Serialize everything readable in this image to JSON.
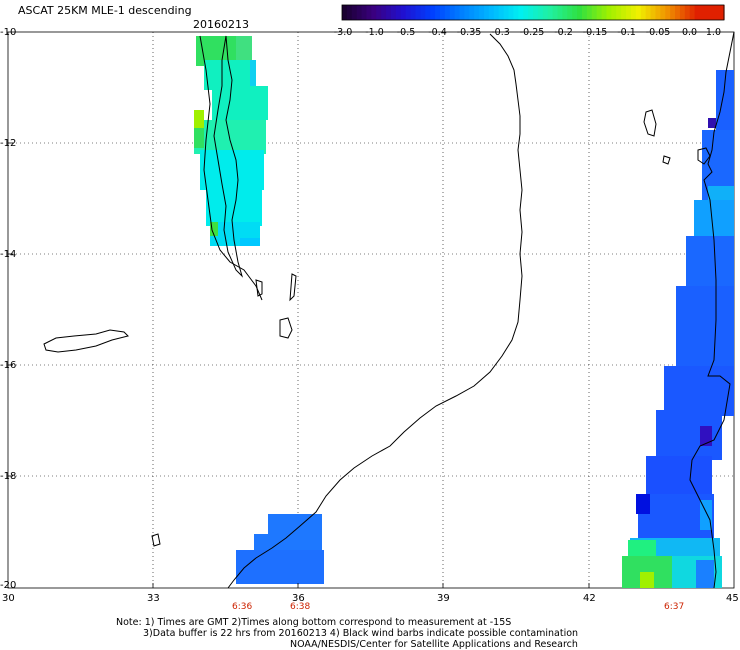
{
  "header": {
    "title": "ASCAT 25KM MLE-1 descending",
    "date": "20160213"
  },
  "colorbar": {
    "labels": [
      "-3.0",
      "-1.0",
      "-0.5",
      "-0.4",
      "-0.35",
      "-0.3",
      "-0.25",
      "-0.2",
      "-0.15",
      "-0.1",
      "-0.05",
      "0.0",
      "1.0"
    ],
    "colors": [
      "#1a0030",
      "#3a0080",
      "#2010d0",
      "#0040ff",
      "#0080ff",
      "#00b8ff",
      "#00f0f0",
      "#20f0a0",
      "#30e040",
      "#a0f000",
      "#f0f000",
      "#f09000",
      "#e02000"
    ]
  },
  "map": {
    "lat_labels": [
      "-10",
      "-12",
      "-14",
      "-16",
      "-18",
      "-20"
    ],
    "lon_labels": [
      "30",
      "33",
      "36",
      "39",
      "42",
      "45"
    ],
    "time_labels": [
      "6:36",
      "6:38",
      "6:37"
    ]
  },
  "notes": {
    "line1": "Note: 1) Times are GMT 2)Times along bottom correspond to measurement at -15S",
    "line2": "3)Data buffer is 22 hrs from 20160213 4) Black wind barbs indicate possible contamination",
    "line3": "NOAA/NESDIS/Center for Satellite Applications and Research"
  }
}
